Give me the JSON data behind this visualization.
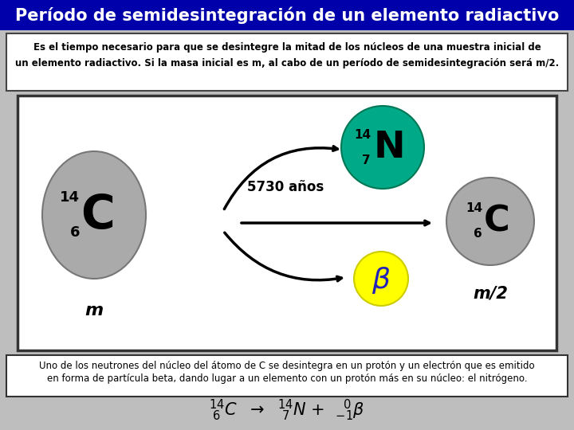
{
  "title": "Período de semidesintegración de un elemento radiactivo",
  "title_bg": "#0000AA",
  "title_color": "#FFFFFF",
  "desc_line1": "Es el tiempo necesario para que se desintegre la mitad de los núcleos de una muestra inicial de",
  "desc_line2": "un elemento radiactivo. Si la masa inicial es m, al cabo de un período de semidesintegración será m/2.",
  "bg_color": "#BEBEBE",
  "diag_box_bg": "#FFFFFF",
  "diag_box_border": "#333333",
  "atom_C_left_color": "#AAAAAA",
  "atom_N_color": "#00AA88",
  "atom_C_right_color": "#AAAAAA",
  "beta_bg": "#FFFF00",
  "beta_color": "#2222BB",
  "half_life": "5730 años",
  "m_label": "m",
  "m2_label": "m/2",
  "bottom_line1": "Uno de los neutrones del núcleo del átomo de C se desintegra en un protón y un electrón que es emitido",
  "bottom_line2": "en forma de partícula beta, dando lugar a un elemento con un protón más en su núcleo: el nitrógeno.",
  "bottom_box_border": "#333333"
}
